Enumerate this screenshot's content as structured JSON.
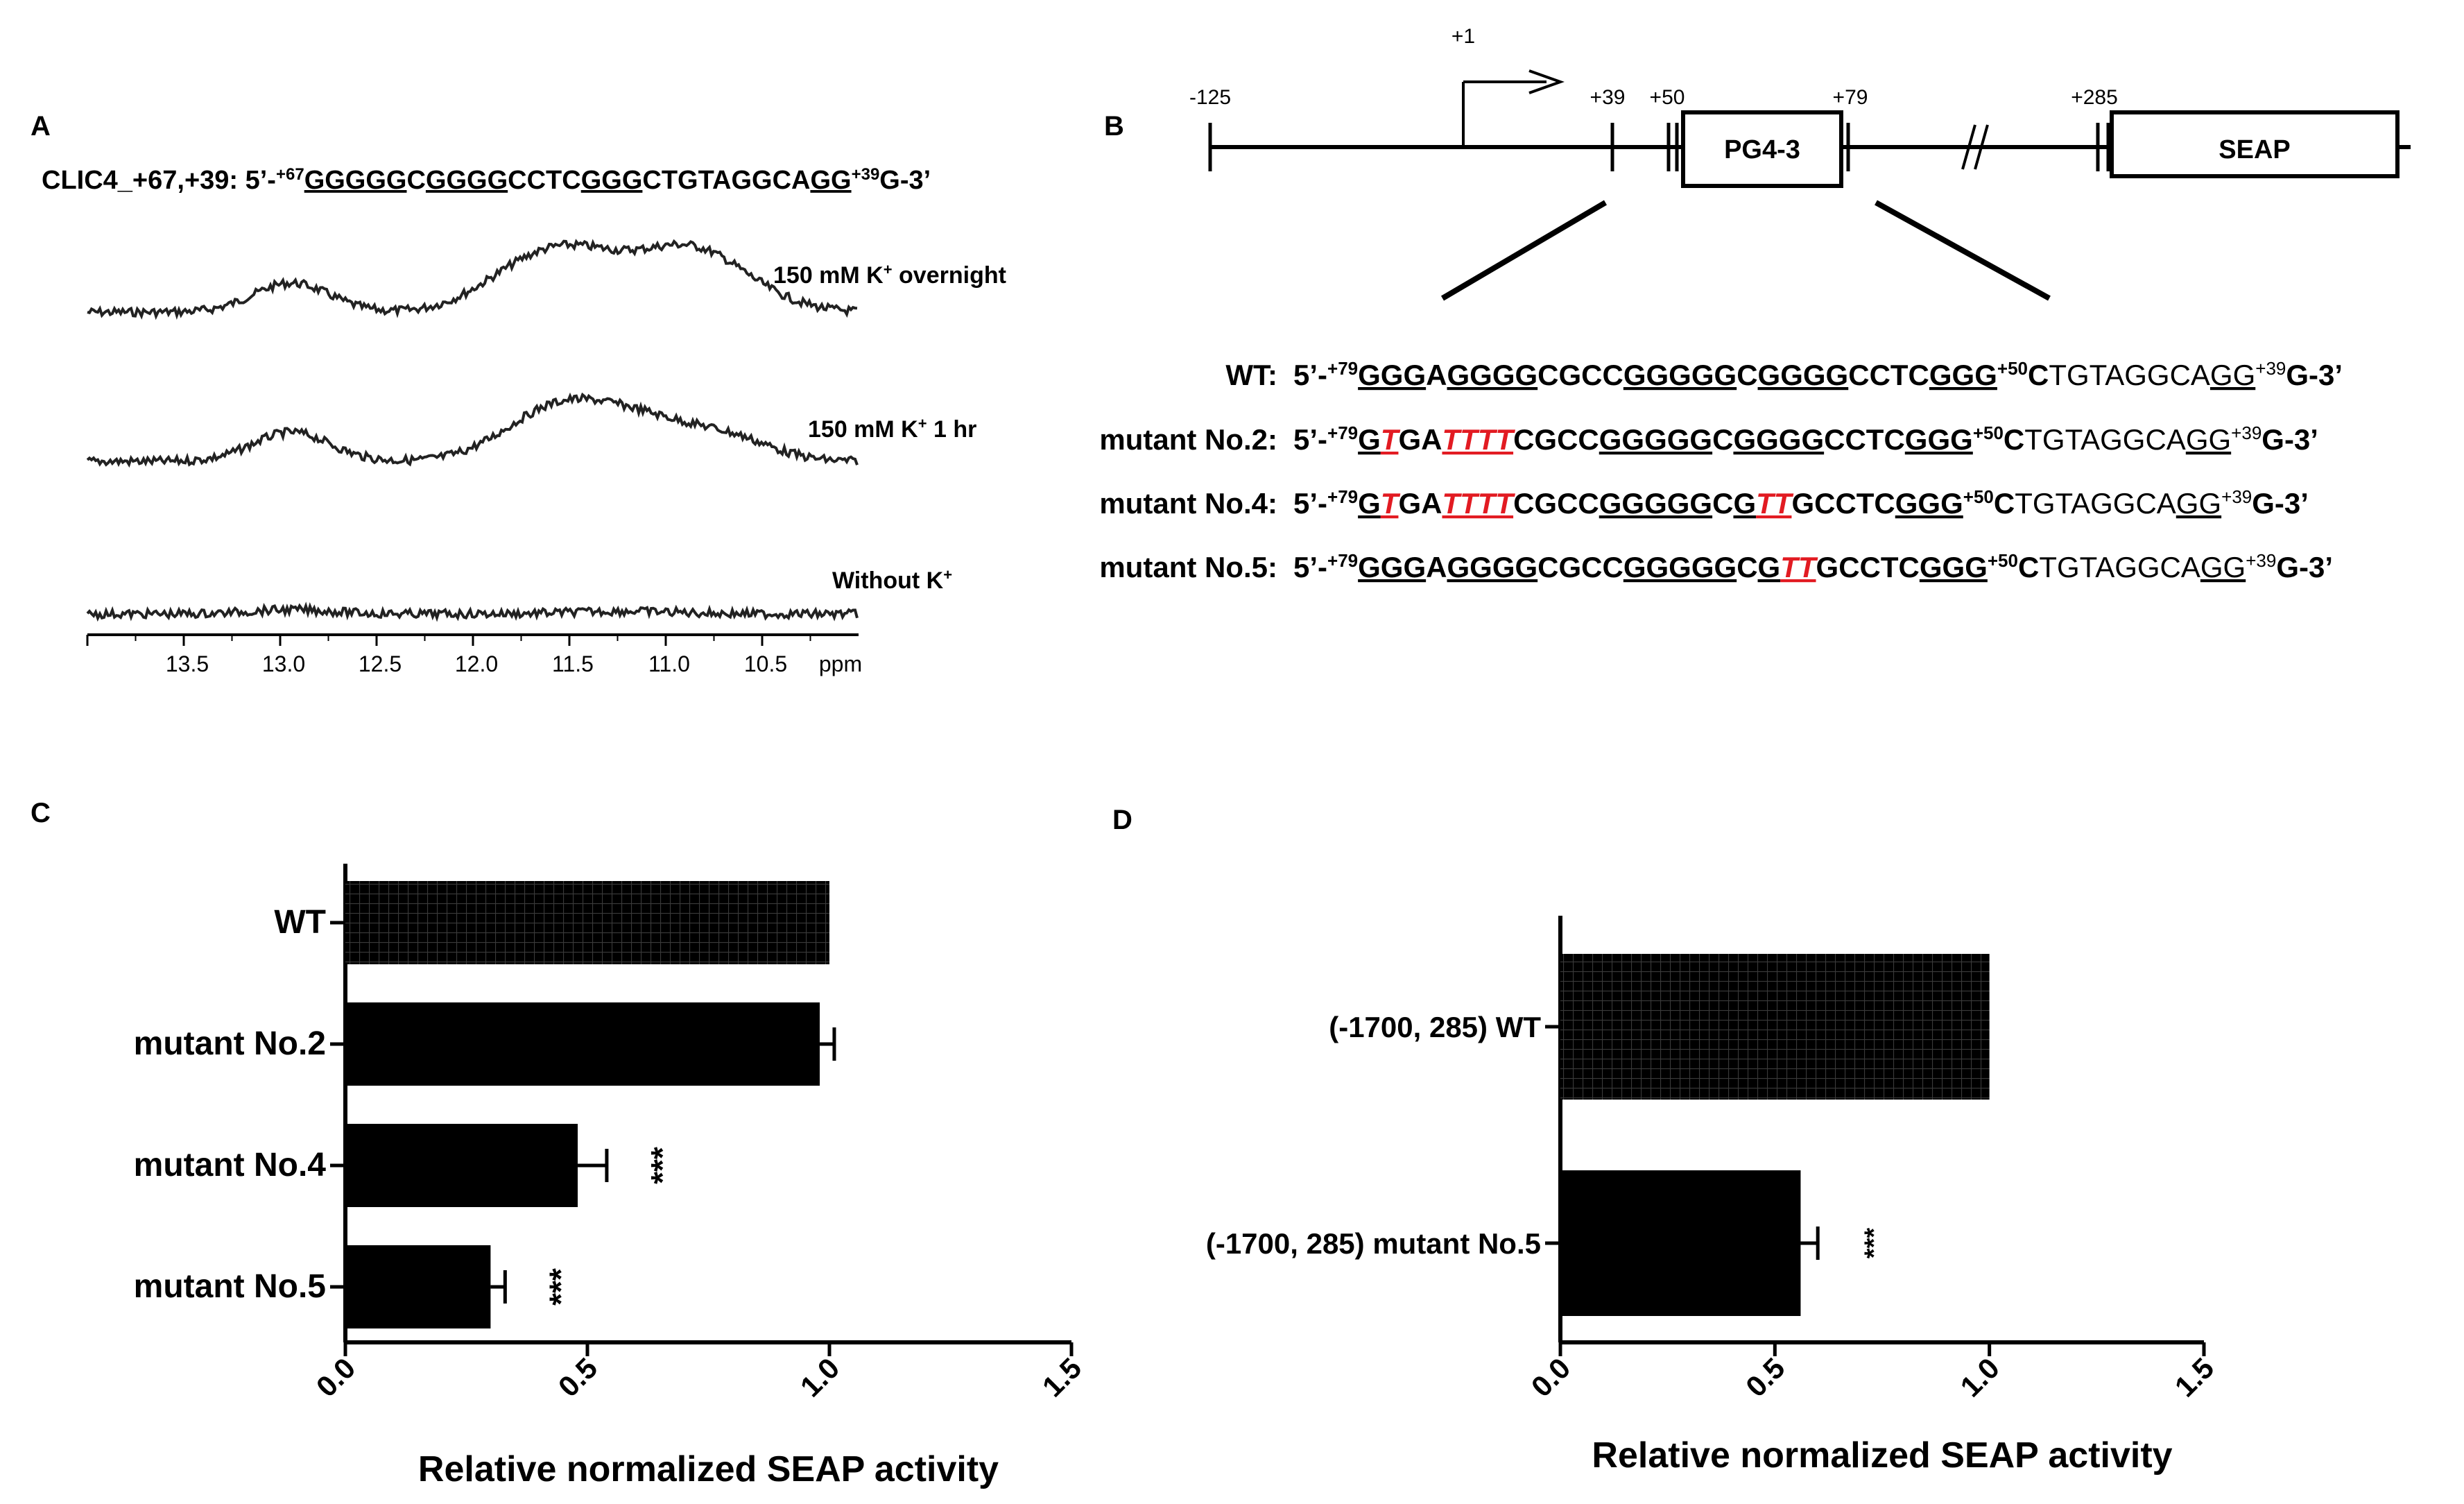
{
  "panels": {
    "a": "A",
    "b": "B",
    "c": "C",
    "d": "D"
  },
  "panel_a": {
    "title_prefix": "CLIC4_+67,+39: 5’-",
    "title_sup_start": "+67",
    "seq_parts": [
      {
        "t": "GGGGG",
        "u": true
      },
      {
        "t": "C",
        "u": false
      },
      {
        "t": "GGGG",
        "u": true
      },
      {
        "t": "CCTC",
        "u": false
      },
      {
        "t": "GGG",
        "u": true
      },
      {
        "t": "CTGTAGGCA",
        "u": false
      },
      {
        "t": "GG",
        "u": true
      }
    ],
    "title_sup_end": "+39",
    "title_suffix": "G-3’",
    "trace_labels": {
      "overnight_main": "150 mM K",
      "overnight_sup": "+",
      "overnight_rest": " overnight",
      "hr_main": "150 mM K",
      "hr_sup": "+",
      "hr_rest": " 1 hr",
      "without_main": "Without K",
      "without_sup": "+"
    },
    "axis_ticks": [
      "13.5",
      "13.0",
      "12.5",
      "12.0",
      "11.5",
      "11.0",
      "10.5"
    ],
    "axis_unit": "ppm"
  },
  "panel_b": {
    "positions": [
      "-125",
      "+1",
      "+39",
      "+50",
      "+79",
      "+285"
    ],
    "boxes": [
      "PG4-3",
      "SEAP"
    ],
    "rows": [
      {
        "label": "WT:",
        "prefix": "5’-",
        "sup79": "+79",
        "parts": [
          {
            "t": "GGG",
            "u": true,
            "r": false
          },
          {
            "t": "A",
            "u": false,
            "r": false
          },
          {
            "t": "GGGG",
            "u": true,
            "r": false
          },
          {
            "t": "CGCC",
            "u": false,
            "r": false
          },
          {
            "t": "GGGGG",
            "u": true,
            "r": false
          },
          {
            "t": "C",
            "u": false,
            "r": false
          },
          {
            "t": "GGGG",
            "u": true,
            "r": false
          },
          {
            "t": "CCTC",
            "u": false,
            "r": false
          },
          {
            "t": "GGG",
            "u": true,
            "r": false
          }
        ],
        "sup50": "+50",
        "tail1": "C",
        "tail2": "TGTAGGCA",
        "tail3": "GG",
        "sup39": "+39",
        "tail4": "G-3’"
      },
      {
        "label": "mutant  No.2:",
        "prefix": "5’-",
        "sup79": "+79",
        "parts": [
          {
            "t": "G",
            "u": true,
            "r": false
          },
          {
            "t": "T",
            "u": true,
            "r": true
          },
          {
            "t": "GA",
            "u": false,
            "r": false
          },
          {
            "t": "TTTT",
            "u": true,
            "r": true
          },
          {
            "t": "CGCC",
            "u": false,
            "r": false
          },
          {
            "t": "GGGGG",
            "u": true,
            "r": false
          },
          {
            "t": "C",
            "u": false,
            "r": false
          },
          {
            "t": "GGGG",
            "u": true,
            "r": false
          },
          {
            "t": "CCTC",
            "u": false,
            "r": false
          },
          {
            "t": "GGG",
            "u": true,
            "r": false
          }
        ],
        "sup50": "+50",
        "tail1": "C",
        "tail2": "TGTAGGCA",
        "tail3": "GG",
        "sup39": "+39",
        "tail4": "G-3’"
      },
      {
        "label": "mutant  No.4:",
        "prefix": "5’-",
        "sup79": "+79",
        "parts": [
          {
            "t": "G",
            "u": true,
            "r": false
          },
          {
            "t": "T",
            "u": true,
            "r": true
          },
          {
            "t": "GA",
            "u": false,
            "r": false
          },
          {
            "t": "TTTT",
            "u": true,
            "r": true
          },
          {
            "t": "CGCC",
            "u": false,
            "r": false
          },
          {
            "t": "GGGGG",
            "u": true,
            "r": false
          },
          {
            "t": "C",
            "u": false,
            "r": false
          },
          {
            "t": "G",
            "u": true,
            "r": false
          },
          {
            "t": "TT",
            "u": true,
            "r": true
          },
          {
            "t": "G",
            "u": false,
            "r": false
          },
          {
            "t": "CCTC",
            "u": false,
            "r": false
          },
          {
            "t": "GGG",
            "u": true,
            "r": false
          }
        ],
        "sup50": "+50",
        "tail1": "C",
        "tail2": "TGTAGGCA",
        "tail3": "GG",
        "sup39": "+39",
        "tail4": "G-3’"
      },
      {
        "label": "mutant  No.5:",
        "prefix": "5’-",
        "sup79": "+79",
        "parts": [
          {
            "t": "GGG",
            "u": true,
            "r": false
          },
          {
            "t": "A",
            "u": false,
            "r": false
          },
          {
            "t": "GGGG",
            "u": true,
            "r": false
          },
          {
            "t": "CGCC",
            "u": false,
            "r": false
          },
          {
            "t": "GGGGG",
            "u": true,
            "r": false
          },
          {
            "t": "C",
            "u": false,
            "r": false
          },
          {
            "t": "G",
            "u": true,
            "r": false
          },
          {
            "t": "TT",
            "u": true,
            "r": true
          },
          {
            "t": "G",
            "u": false,
            "r": false
          },
          {
            "t": "CCTC",
            "u": false,
            "r": false
          },
          {
            "t": "GGG",
            "u": true,
            "r": false
          }
        ],
        "sup50": "+50",
        "tail1": "C",
        "tail2": "TGTAGGCA",
        "tail3": "GG",
        "sup39": "+39",
        "tail4": "G-3’"
      }
    ]
  },
  "chart_data": [
    {
      "type": "bar",
      "orientation": "horizontal",
      "panel": "C",
      "categories": [
        "WT",
        "mutant No.2",
        "mutant No.4",
        "mutant No.5"
      ],
      "values": [
        1.0,
        0.98,
        0.48,
        0.3
      ],
      "errors": [
        0.0,
        0.03,
        0.06,
        0.03
      ],
      "significance": [
        "",
        "",
        "***",
        "***"
      ],
      "xlabel": "Relative normalized SEAP activity",
      "xlim": [
        0,
        1.5
      ],
      "xticks": [
        "0.0",
        "0.5",
        "1.0",
        "1.5"
      ],
      "grid": false,
      "colors": {
        "bar": "#000000",
        "wt_pattern": "#2a2a2a"
      }
    },
    {
      "type": "bar",
      "orientation": "horizontal",
      "panel": "D",
      "categories": [
        "(-1700, 285) WT",
        "(-1700, 285) mutant No.5"
      ],
      "values": [
        1.0,
        0.56
      ],
      "errors": [
        0.0,
        0.04
      ],
      "significance": [
        "",
        "***"
      ],
      "xlabel": "Relative normalized SEAP activity",
      "xlim": [
        0,
        1.5
      ],
      "xticks": [
        "0.0",
        "0.5",
        "1.0",
        "1.5"
      ],
      "grid": false,
      "colors": {
        "bar": "#000000",
        "wt_pattern": "#2a2a2a"
      }
    }
  ]
}
